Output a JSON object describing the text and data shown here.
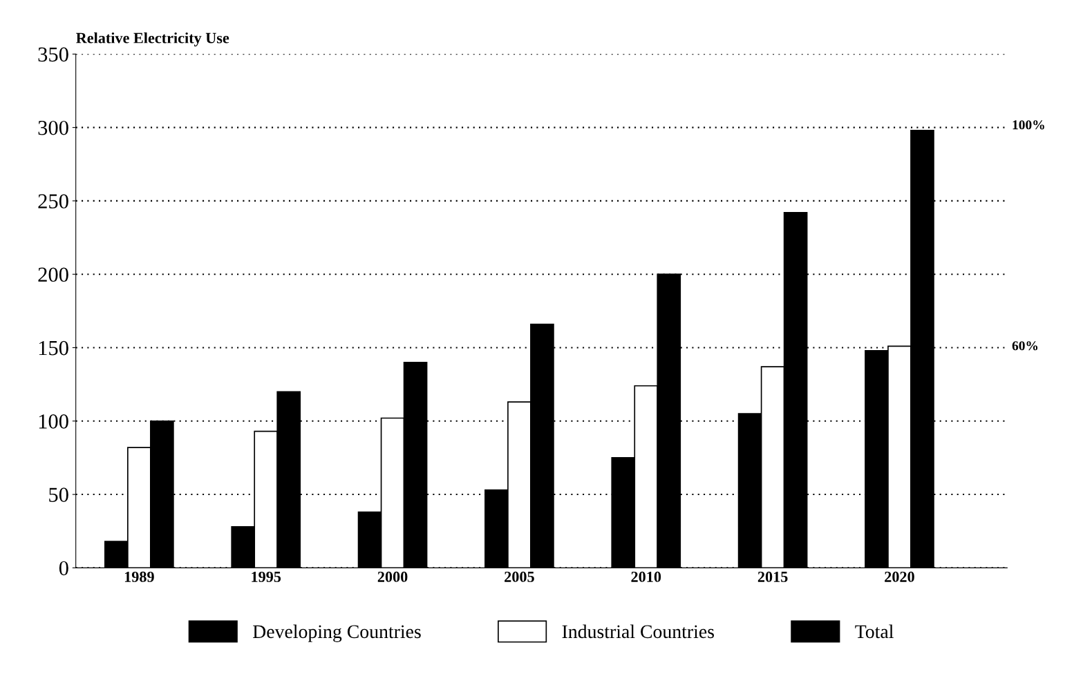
{
  "chart_data": {
    "type": "bar",
    "ylabel": "Relative Electricity Use",
    "categories": [
      "1989",
      "1995",
      "2000",
      "2005",
      "2010",
      "2015",
      "2020"
    ],
    "series": [
      {
        "name": "Developing Countries",
        "color": "#000000",
        "values": [
          18,
          28,
          38,
          53,
          75,
          105,
          148
        ]
      },
      {
        "name": "Industrial Countries",
        "color": "#ffffff",
        "values": [
          82,
          93,
          102,
          113,
          124,
          137,
          151
        ]
      },
      {
        "name": "Total",
        "color": "#000000",
        "values": [
          100,
          120,
          140,
          166,
          200,
          242,
          298
        ]
      }
    ],
    "ylim": [
      0,
      350
    ],
    "yticks": [
      0,
      50,
      100,
      150,
      200,
      250,
      300,
      350
    ],
    "grid": "y",
    "legend": "bottom",
    "annotations": [
      "100%",
      "60%"
    ]
  }
}
